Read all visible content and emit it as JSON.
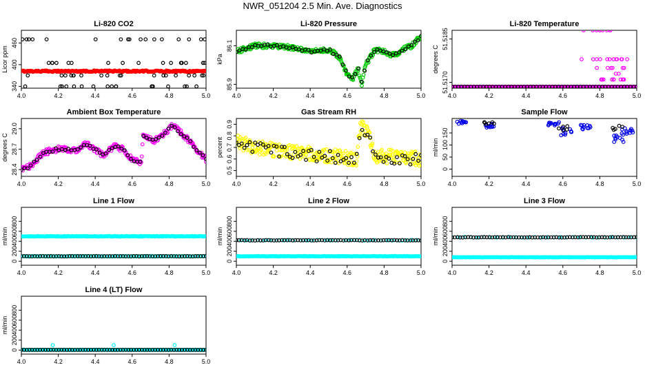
{
  "page": {
    "title": "NWR_051204  2.5 Min. Ave. Diagnostics"
  },
  "chart_data": [
    {
      "type": "scatter",
      "title": "Li-820 CO2",
      "ylabel": "Licor ppm",
      "xlabel": "",
      "xlim": [
        4.0,
        5.0
      ],
      "ylim": [
        335,
        495
      ],
      "xticks": [
        "4.0",
        "4.2",
        "4.4",
        "4.6",
        "4.8",
        "5.0"
      ],
      "xtick_values": [
        4.0,
        4.2,
        4.4,
        4.6,
        4.8,
        5.0
      ],
      "yticks": [
        "340",
        "400",
        "460"
      ],
      "ytick_values": [
        340,
        400,
        460
      ],
      "series": [
        {
          "name": "red",
          "color": "#ff0000",
          "pattern": "flat",
          "base": 382,
          "noise": 2,
          "n": 240
        },
        {
          "name": "black",
          "color": "#000000",
          "pattern": "levels",
          "levels": [
            340,
            370,
            405,
            470
          ],
          "n": 70
        }
      ]
    },
    {
      "type": "scatter",
      "title": "Li-820 Pressure",
      "ylabel": "kPa",
      "xlabel": "",
      "xlim": [
        4.0,
        5.0
      ],
      "ylim": [
        85.88,
        86.18
      ],
      "xticks": [
        "4.0",
        "4.2",
        "4.4",
        "4.6",
        "4.8",
        "5.0"
      ],
      "xtick_values": [
        4.0,
        4.2,
        4.4,
        4.6,
        4.8,
        5.0
      ],
      "yticks": [
        "85.9",
        "86.1"
      ],
      "ytick_values": [
        85.9,
        86.1
      ],
      "series": [
        {
          "name": "green",
          "color": "#00cc00",
          "pattern": "curve",
          "noise": 0.012,
          "n": 300,
          "curve": [
            [
              4.0,
              86.07
            ],
            [
              4.1,
              86.1
            ],
            [
              4.2,
              86.1
            ],
            [
              4.3,
              86.09
            ],
            [
              4.4,
              86.07
            ],
            [
              4.5,
              86.08
            ],
            [
              4.56,
              86.04
            ],
            [
              4.6,
              85.95
            ],
            [
              4.63,
              85.93
            ],
            [
              4.66,
              85.98
            ],
            [
              4.68,
              85.9
            ],
            [
              4.7,
              86.0
            ],
            [
              4.75,
              86.08
            ],
            [
              4.8,
              86.07
            ],
            [
              4.85,
              86.05
            ],
            [
              4.9,
              86.08
            ],
            [
              4.95,
              86.1
            ],
            [
              5.0,
              86.15
            ]
          ]
        },
        {
          "name": "black",
          "color": "#000000",
          "pattern": "curve",
          "noise": 0.006,
          "n": 60,
          "curve": [
            [
              4.0,
              86.07
            ],
            [
              4.1,
              86.1
            ],
            [
              4.2,
              86.1
            ],
            [
              4.3,
              86.09
            ],
            [
              4.4,
              86.07
            ],
            [
              4.5,
              86.08
            ],
            [
              4.56,
              86.04
            ],
            [
              4.6,
              85.95
            ],
            [
              4.63,
              85.93
            ],
            [
              4.66,
              85.98
            ],
            [
              4.68,
              85.9
            ],
            [
              4.7,
              86.0
            ],
            [
              4.75,
              86.08
            ],
            [
              4.8,
              86.07
            ],
            [
              4.85,
              86.05
            ],
            [
              4.9,
              86.08
            ],
            [
              4.95,
              86.1
            ],
            [
              5.0,
              86.15
            ]
          ]
        }
      ]
    },
    {
      "type": "scatter",
      "title": "Li-820 Temperature",
      "ylabel": "degrees C",
      "xlabel": "",
      "xlim": [
        4.0,
        5.0
      ],
      "ylim": [
        51.5168,
        51.5188
      ],
      "xticks": [
        "4.0",
        "4.2",
        "4.4",
        "4.6",
        "4.8",
        "5.0"
      ],
      "xtick_values": [
        4.0,
        4.2,
        4.4,
        4.6,
        4.8,
        5.0
      ],
      "yticks": [
        "51.5170",
        "51.5185"
      ],
      "ytick_values": [
        51.517,
        51.5185
      ],
      "series": [
        {
          "name": "magenta",
          "color": "#ff00ff",
          "pattern": "flat",
          "base": 51.51685,
          "noise": 0,
          "n": 200
        },
        {
          "name": "magenta-spikes",
          "color": "#ff00ff",
          "pattern": "levels",
          "levels": [
            51.5171,
            51.5173,
            51.5175,
            51.5178,
            51.5188
          ],
          "n": 40,
          "xrange": [
            4.7,
            4.95
          ]
        },
        {
          "name": "black",
          "color": "#000000",
          "pattern": "flat",
          "base": 51.51685,
          "noise": 0,
          "n": 60
        }
      ]
    },
    {
      "type": "scatter",
      "title": "Ambient Box Temperature",
      "ylabel": "degrees C",
      "xlabel": "",
      "xlim": [
        4.0,
        5.0
      ],
      "ylim": [
        28.3,
        29.15
      ],
      "xticks": [
        "4.0",
        "4.2",
        "4.4",
        "4.6",
        "4.8",
        "5.0"
      ],
      "xtick_values": [
        4.0,
        4.2,
        4.4,
        4.6,
        4.8,
        5.0
      ],
      "yticks": [
        "28.4",
        "28.7",
        "29.0"
      ],
      "ytick_values": [
        28.4,
        28.7,
        29.0
      ],
      "series": [
        {
          "name": "magenta",
          "color": "#ff00ff",
          "pattern": "curve",
          "noise": 0.04,
          "n": 280,
          "curve": [
            [
              4.0,
              28.4
            ],
            [
              4.05,
              28.45
            ],
            [
              4.12,
              28.65
            ],
            [
              4.2,
              28.7
            ],
            [
              4.3,
              28.68
            ],
            [
              4.35,
              28.78
            ],
            [
              4.45,
              28.6
            ],
            [
              4.5,
              28.75
            ],
            [
              4.55,
              28.7
            ],
            [
              4.6,
              28.55
            ],
            [
              4.65,
              28.5
            ],
            [
              4.66,
              28.9
            ],
            [
              4.72,
              28.82
            ],
            [
              4.78,
              28.95
            ],
            [
              4.82,
              29.05
            ],
            [
              4.88,
              28.9
            ],
            [
              4.95,
              28.7
            ],
            [
              5.0,
              28.55
            ]
          ]
        },
        {
          "name": "black",
          "color": "#000000",
          "pattern": "curve",
          "noise": 0.02,
          "n": 60,
          "curve": [
            [
              4.0,
              28.4
            ],
            [
              4.05,
              28.45
            ],
            [
              4.12,
              28.65
            ],
            [
              4.2,
              28.7
            ],
            [
              4.3,
              28.68
            ],
            [
              4.35,
              28.78
            ],
            [
              4.45,
              28.6
            ],
            [
              4.5,
              28.75
            ],
            [
              4.55,
              28.7
            ],
            [
              4.6,
              28.55
            ],
            [
              4.65,
              28.5
            ],
            [
              4.66,
              28.9
            ],
            [
              4.72,
              28.82
            ],
            [
              4.78,
              28.95
            ],
            [
              4.82,
              29.05
            ],
            [
              4.88,
              28.9
            ],
            [
              4.95,
              28.7
            ],
            [
              5.0,
              28.55
            ]
          ]
        }
      ]
    },
    {
      "type": "scatter",
      "title": "Gas Stream RH",
      "ylabel": "percent",
      "xlabel": "",
      "xlim": [
        4.0,
        5.0
      ],
      "ylim": [
        0.45,
        0.95
      ],
      "xticks": [
        "4.0",
        "4.2",
        "4.4",
        "4.6",
        "4.8",
        "5.0"
      ],
      "xtick_values": [
        4.0,
        4.2,
        4.4,
        4.6,
        4.8,
        5.0
      ],
      "yticks": [
        "0.5",
        "0.6",
        "0.7",
        "0.8",
        "0.9"
      ],
      "ytick_values": [
        0.5,
        0.6,
        0.7,
        0.8,
        0.9
      ],
      "series": [
        {
          "name": "yellow",
          "color": "#ffff00",
          "pattern": "curve",
          "noise": 0.06,
          "n": 320,
          "curve": [
            [
              4.0,
              0.75
            ],
            [
              4.1,
              0.7
            ],
            [
              4.3,
              0.66
            ],
            [
              4.5,
              0.63
            ],
            [
              4.65,
              0.6
            ],
            [
              4.67,
              0.88
            ],
            [
              4.72,
              0.82
            ],
            [
              4.75,
              0.62
            ],
            [
              4.85,
              0.62
            ],
            [
              5.0,
              0.6
            ]
          ]
        },
        {
          "name": "black",
          "color": "#000000",
          "pattern": "curve",
          "noise": 0.05,
          "n": 70,
          "curve": [
            [
              4.0,
              0.73
            ],
            [
              4.1,
              0.7
            ],
            [
              4.3,
              0.65
            ],
            [
              4.5,
              0.62
            ],
            [
              4.65,
              0.6
            ],
            [
              4.67,
              0.85
            ],
            [
              4.72,
              0.78
            ],
            [
              4.75,
              0.6
            ],
            [
              4.85,
              0.6
            ],
            [
              5.0,
              0.6
            ]
          ]
        }
      ]
    },
    {
      "type": "scatter",
      "title": "Sample Flow",
      "ylabel": "ml/min",
      "xlabel": "",
      "xlim": [
        4.0,
        5.0
      ],
      "ylim": [
        -30,
        210
      ],
      "xticks": [
        "4.0",
        "4.2",
        "4.4",
        "4.6",
        "4.8",
        "5.0"
      ],
      "xtick_values": [
        4.0,
        4.2,
        4.4,
        4.6,
        4.8,
        5.0
      ],
      "yticks": [
        "0",
        "50",
        "100",
        "150"
      ],
      "ytick_values": [
        0,
        50,
        100,
        150
      ],
      "series": [
        {
          "name": "blue",
          "color": "#0000ee",
          "pattern": "clusters",
          "n": 80,
          "clusters": [
            [
              4.05,
              200,
              12
            ],
            [
              4.2,
              190,
              20
            ],
            [
              4.55,
              195,
              15
            ],
            [
              4.62,
              170,
              30
            ],
            [
              4.72,
              185,
              20
            ],
            [
              4.9,
              150,
              40
            ],
            [
              4.95,
              170,
              25
            ]
          ]
        },
        {
          "name": "black",
          "color": "#000000",
          "pattern": "clusters",
          "n": 16,
          "clusters": [
            [
              4.2,
              195,
              10
            ],
            [
              4.6,
              180,
              20
            ],
            [
              4.9,
              180,
              20
            ]
          ]
        }
      ]
    },
    {
      "type": "scatter",
      "title": "Line 1 Flow",
      "ylabel": "ml/min",
      "xlabel": "",
      "xlim": [
        4.0,
        5.0
      ],
      "ylim": [
        -80,
        1080
      ],
      "xticks": [
        "4.0",
        "4.2",
        "4.4",
        "4.6",
        "4.8",
        "5.0"
      ],
      "xtick_values": [
        4.0,
        4.2,
        4.4,
        4.6,
        4.8,
        5.0
      ],
      "yticks": [
        "0",
        "200",
        "400",
        "600",
        "800"
      ],
      "ytick_values": [
        0,
        200,
        400,
        600,
        800
      ],
      "series": [
        {
          "name": "cyan-high",
          "color": "#00ffff",
          "pattern": "flat",
          "base": 500,
          "noise": 6,
          "n": 200
        },
        {
          "name": "cyan-low",
          "color": "#00ffff",
          "pattern": "flat",
          "base": 100,
          "noise": 4,
          "n": 120
        },
        {
          "name": "black",
          "color": "#000000",
          "pattern": "flat",
          "base": 100,
          "noise": 3,
          "n": 70
        }
      ]
    },
    {
      "type": "scatter",
      "title": "Line 2 Flow",
      "ylabel": "ml/min",
      "xlabel": "",
      "xlim": [
        4.0,
        5.0
      ],
      "ylim": [
        -80,
        1080
      ],
      "xticks": [
        "4.0",
        "4.2",
        "4.4",
        "4.6",
        "4.8",
        "5.0"
      ],
      "xtick_values": [
        4.0,
        4.2,
        4.4,
        4.6,
        4.8,
        5.0
      ],
      "yticks": [
        "0",
        "200",
        "400",
        "600",
        "800"
      ],
      "ytick_values": [
        0,
        200,
        400,
        600,
        800
      ],
      "series": [
        {
          "name": "cyan-low",
          "color": "#00ffff",
          "pattern": "flat",
          "base": 100,
          "noise": 4,
          "n": 200
        },
        {
          "name": "cyan-high",
          "color": "#00ffff",
          "pattern": "flat",
          "base": 420,
          "noise": 6,
          "n": 40
        },
        {
          "name": "black",
          "color": "#000000",
          "pattern": "flat",
          "base": 420,
          "noise": 4,
          "n": 70
        }
      ]
    },
    {
      "type": "scatter",
      "title": "Line 3 Flow",
      "ylabel": "ml/min",
      "xlabel": "",
      "xlim": [
        4.0,
        5.0
      ],
      "ylim": [
        -80,
        1080
      ],
      "xticks": [
        "4.0",
        "4.2",
        "4.4",
        "4.6",
        "4.8",
        "5.0"
      ],
      "xtick_values": [
        4.0,
        4.2,
        4.4,
        4.6,
        4.8,
        5.0
      ],
      "yticks": [
        "0",
        "200",
        "400",
        "600",
        "800"
      ],
      "ytick_values": [
        0,
        200,
        400,
        600,
        800
      ],
      "series": [
        {
          "name": "cyan-low",
          "color": "#00ffff",
          "pattern": "flat",
          "base": 80,
          "noise": 3,
          "n": 200
        },
        {
          "name": "cyan-high",
          "color": "#00ffff",
          "pattern": "flat",
          "base": 480,
          "noise": 8,
          "n": 30
        },
        {
          "name": "black",
          "color": "#000000",
          "pattern": "flat",
          "base": 480,
          "noise": 4,
          "n": 70
        }
      ]
    },
    {
      "type": "scatter",
      "title": "Line 4 (LT) Flow",
      "ylabel": "ml/min",
      "xlabel": "",
      "xlim": [
        4.0,
        5.0
      ],
      "ylim": [
        -80,
        1080
      ],
      "xticks": [
        "4.0",
        "4.2",
        "4.4",
        "4.6",
        "4.8",
        "5.0"
      ],
      "xtick_values": [
        4.0,
        4.2,
        4.4,
        4.6,
        4.8,
        5.0
      ],
      "yticks": [
        "0",
        "200",
        "400",
        "600",
        "800"
      ],
      "ytick_values": [
        0,
        200,
        400,
        600,
        800
      ],
      "series": [
        {
          "name": "cyan",
          "color": "#00ffff",
          "pattern": "flat",
          "base": 5,
          "noise": 2,
          "n": 160
        },
        {
          "name": "cyan-spikes",
          "color": "#00ffff",
          "pattern": "points",
          "points": [
            [
              4.17,
              100
            ],
            [
              4.5,
              100
            ],
            [
              4.83,
              100
            ]
          ]
        },
        {
          "name": "black",
          "color": "#000000",
          "pattern": "flat",
          "base": 5,
          "noise": 1,
          "n": 70
        }
      ]
    }
  ]
}
